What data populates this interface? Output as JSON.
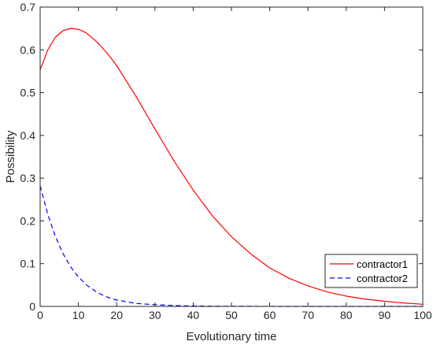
{
  "chart_data": {
    "type": "line",
    "title": "",
    "xlabel": "Evolutionary time",
    "ylabel": "Possibility",
    "xlim": [
      0,
      100
    ],
    "ylim": [
      0,
      0.7
    ],
    "xticks": [
      0,
      10,
      20,
      30,
      40,
      50,
      60,
      70,
      80,
      90,
      100
    ],
    "xtick_labels": [
      "0",
      "10",
      "20",
      "30",
      "40",
      "50",
      "60",
      "70",
      "80",
      "90",
      "100"
    ],
    "yticks": [
      0,
      0.1,
      0.2,
      0.3,
      0.4,
      0.5,
      0.6,
      0.7
    ],
    "ytick_labels": [
      "0",
      "0.1",
      "0.2",
      "0.3",
      "0.4",
      "0.5",
      "0.6",
      "0.7"
    ],
    "grid": false,
    "legend_position": "bottom-right",
    "x": [
      0,
      2,
      4,
      6,
      8,
      10,
      12,
      15,
      18,
      20,
      25,
      30,
      35,
      40,
      45,
      50,
      55,
      60,
      65,
      70,
      75,
      80,
      85,
      90,
      95,
      100
    ],
    "series": [
      {
        "name": "contractor1",
        "color": "#ff0000",
        "dash": "solid",
        "values": [
          0.553,
          0.6,
          0.63,
          0.645,
          0.65,
          0.648,
          0.64,
          0.617,
          0.587,
          0.563,
          0.492,
          0.415,
          0.34,
          0.272,
          0.212,
          0.163,
          0.123,
          0.09,
          0.066,
          0.048,
          0.034,
          0.024,
          0.017,
          0.012,
          0.008,
          0.005
        ]
      },
      {
        "name": "contractor2",
        "color": "#0000ff",
        "dash": "dashed",
        "values": [
          0.282,
          0.215,
          0.163,
          0.123,
          0.092,
          0.069,
          0.051,
          0.032,
          0.02,
          0.015,
          0.007,
          0.004,
          0.002,
          0.001,
          0.0005,
          0.0003,
          0.0002,
          0.0001,
          0,
          0,
          0,
          0,
          0,
          0,
          0,
          0
        ]
      }
    ]
  }
}
